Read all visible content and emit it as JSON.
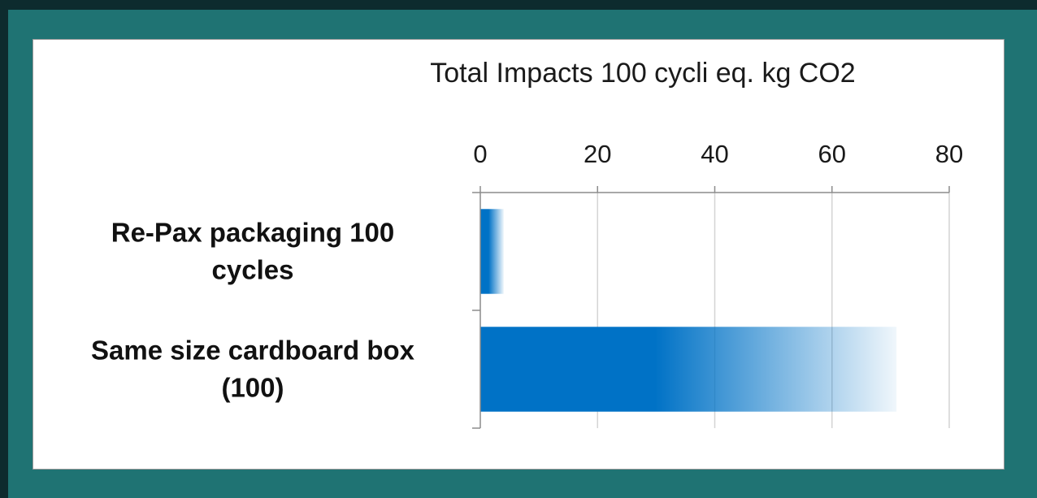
{
  "chart_data": {
    "type": "bar",
    "orientation": "horizontal",
    "title": "Total Impacts 100 cycli eq. kg CO2",
    "categories": [
      [
        "Re-Pax packaging 100",
        "cycles"
      ],
      [
        "Same size cardboard box",
        "(100)"
      ]
    ],
    "values": [
      4,
      71
    ],
    "xlim": [
      0,
      80
    ],
    "xticks": [
      "0",
      "20",
      "40",
      "60",
      "80"
    ],
    "axis_position": "top",
    "grid": true,
    "bar_style": "gradient fade at end",
    "colors": {
      "bar": "#0072c6",
      "grid": "#d4d4d4",
      "axis": "#8c8c8c",
      "frame": "#1f7373",
      "background": "#ffffff"
    }
  }
}
